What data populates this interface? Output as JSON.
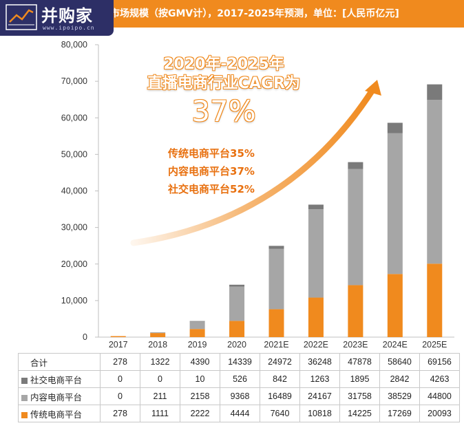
{
  "header": {
    "title": "市场规模（按GMV计），2017-2025年预测，单位：[人民币亿元]",
    "logo_text": "并购家",
    "logo_sub": "www.ipoipo.cn"
  },
  "annotation": {
    "cagr_line1": "2020年-2025年",
    "cagr_line2": "直播电商行业CAGR为",
    "cagr_value": "37%",
    "growth_lines": [
      "传统电商平台35%",
      "内容电商平台37%",
      "社交电商平台52%"
    ]
  },
  "table": {
    "total_label": "合计",
    "totals": [
      "278",
      "1322",
      "4390",
      "14339",
      "24972",
      "36248",
      "47878",
      "58640",
      "69156"
    ],
    "rows": [
      {
        "label": "社交电商平台",
        "values": [
          "0",
          "0",
          "10",
          "526",
          "842",
          "1263",
          "1895",
          "2842",
          "4263"
        ]
      },
      {
        "label": "内容电商平台",
        "values": [
          "0",
          "211",
          "2158",
          "9368",
          "16489",
          "24167",
          "31758",
          "38529",
          "44800"
        ]
      },
      {
        "label": "传统电商平台",
        "values": [
          "278",
          "1111",
          "2222",
          "4444",
          "7640",
          "10818",
          "14225",
          "17269",
          "20093"
        ]
      }
    ]
  },
  "chart_data": {
    "type": "bar",
    "stacked": true,
    "categories": [
      "2017",
      "2018",
      "2019",
      "2020",
      "2021E",
      "2022E",
      "2023E",
      "2024E",
      "2025E"
    ],
    "series": [
      {
        "name": "传统电商平台",
        "color": "#f08a1e",
        "values": [
          278,
          1111,
          2222,
          4444,
          7640,
          10818,
          14225,
          17269,
          20093
        ]
      },
      {
        "name": "内容电商平台",
        "color": "#a6a6a6",
        "values": [
          0,
          211,
          2158,
          9368,
          16489,
          24167,
          31758,
          38529,
          44800
        ]
      },
      {
        "name": "社交电商平台",
        "color": "#7a7a7a",
        "values": [
          0,
          0,
          10,
          526,
          842,
          1263,
          1895,
          2842,
          4263
        ]
      }
    ],
    "ylim": [
      0,
      80000
    ],
    "yticks": [
      "0",
      "10,000",
      "20,000",
      "30,000",
      "40,000",
      "50,000",
      "60,000",
      "70,000",
      "80,000"
    ],
    "grid": false
  }
}
